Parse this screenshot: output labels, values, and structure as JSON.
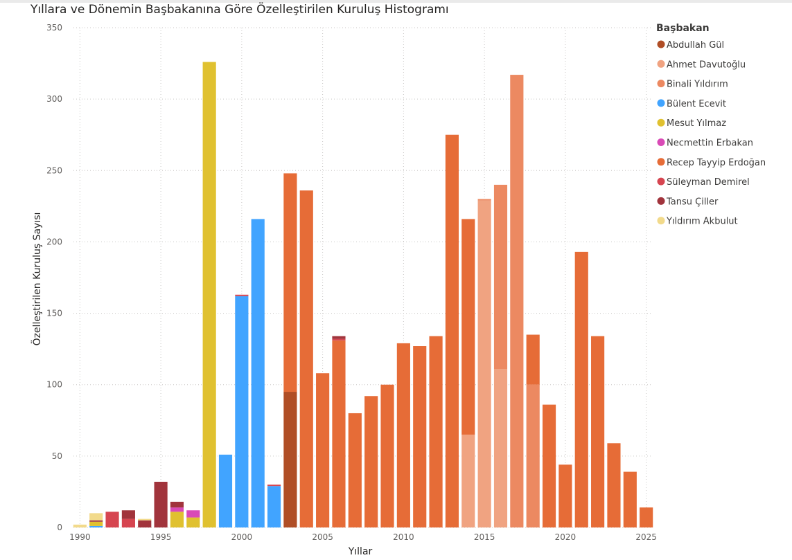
{
  "chart_data": {
    "type": "bar",
    "stacked": true,
    "title": "Yıllara ve Dönemin Başbakanına Göre Özelleştirilen Kuruluş Histogramı",
    "xlabel": "Yıllar",
    "ylabel": "Özelleştirilen Kuruluş Sayısı",
    "ylim": [
      0,
      350
    ],
    "yticks": [
      0,
      50,
      100,
      150,
      200,
      250,
      300,
      350
    ],
    "xlim": [
      1989.6,
      2025.4
    ],
    "xticks": [
      1990,
      1995,
      2000,
      2005,
      2010,
      2015,
      2020,
      2025
    ],
    "grid": true,
    "legend": {
      "title": "Başbakan",
      "position": "right"
    },
    "series": [
      {
        "name": "Abdullah Gül",
        "color": "#B04E26",
        "data": [
          [
            2003,
            95
          ]
        ]
      },
      {
        "name": "Ahmet Davutoğlu",
        "color": "#F0A381",
        "data": [
          [
            2014,
            65
          ],
          [
            2015,
            229
          ],
          [
            2016,
            111
          ]
        ]
      },
      {
        "name": "Binali Yıldırım",
        "color": "#EC8961",
        "data": [
          [
            2015,
            1
          ],
          [
            2016,
            129
          ],
          [
            2017,
            317
          ],
          [
            2018,
            100
          ]
        ]
      },
      {
        "name": "Bülent Ecevit",
        "color": "#41A4FF",
        "data": [
          [
            1991,
            1
          ],
          [
            1999,
            51
          ],
          [
            2000,
            162
          ],
          [
            2001,
            216
          ],
          [
            2002,
            29
          ]
        ]
      },
      {
        "name": "Mesut Yılmaz",
        "color": "#E0C130",
        "data": [
          [
            1991,
            3
          ],
          [
            1996,
            11
          ],
          [
            1998,
            326
          ],
          [
            1997,
            7
          ]
        ]
      },
      {
        "name": "Necmettin Erbakan",
        "color": "#D94AB6",
        "data": [
          [
            1996,
            3
          ],
          [
            1997,
            5
          ]
        ]
      },
      {
        "name": "Recep Tayyip Erdoğan",
        "color": "#E66C37",
        "data": [
          [
            2003,
            153
          ],
          [
            2004,
            236
          ],
          [
            2005,
            108
          ],
          [
            2006,
            131
          ],
          [
            2007,
            80
          ],
          [
            2008,
            92
          ],
          [
            2009,
            100
          ],
          [
            2010,
            129
          ],
          [
            2011,
            127
          ],
          [
            2012,
            134
          ],
          [
            2013,
            275
          ],
          [
            2014,
            151
          ],
          [
            2018,
            35
          ],
          [
            2019,
            86
          ],
          [
            2020,
            44
          ],
          [
            2021,
            193
          ],
          [
            2022,
            134
          ],
          [
            2023,
            59
          ],
          [
            2024,
            39
          ],
          [
            2025,
            14
          ]
        ]
      },
      {
        "name": "Süleyman Demirel",
        "color": "#D64550",
        "data": [
          [
            1992,
            11
          ],
          [
            1993,
            6
          ],
          [
            2000,
            1
          ],
          [
            2002,
            1
          ],
          [
            2006,
            1
          ]
        ]
      },
      {
        "name": "Tansu Çiller",
        "color": "#A1343C",
        "data": [
          [
            1991,
            1
          ],
          [
            1993,
            6
          ],
          [
            1994,
            5
          ],
          [
            1995,
            32
          ],
          [
            1996,
            4
          ],
          [
            2006,
            2
          ]
        ]
      },
      {
        "name": "Yıldırım Akbulut",
        "color": "#F2DA8B",
        "data": [
          [
            1990,
            2
          ],
          [
            1991,
            5
          ],
          [
            1994,
            1
          ]
        ]
      }
    ]
  }
}
